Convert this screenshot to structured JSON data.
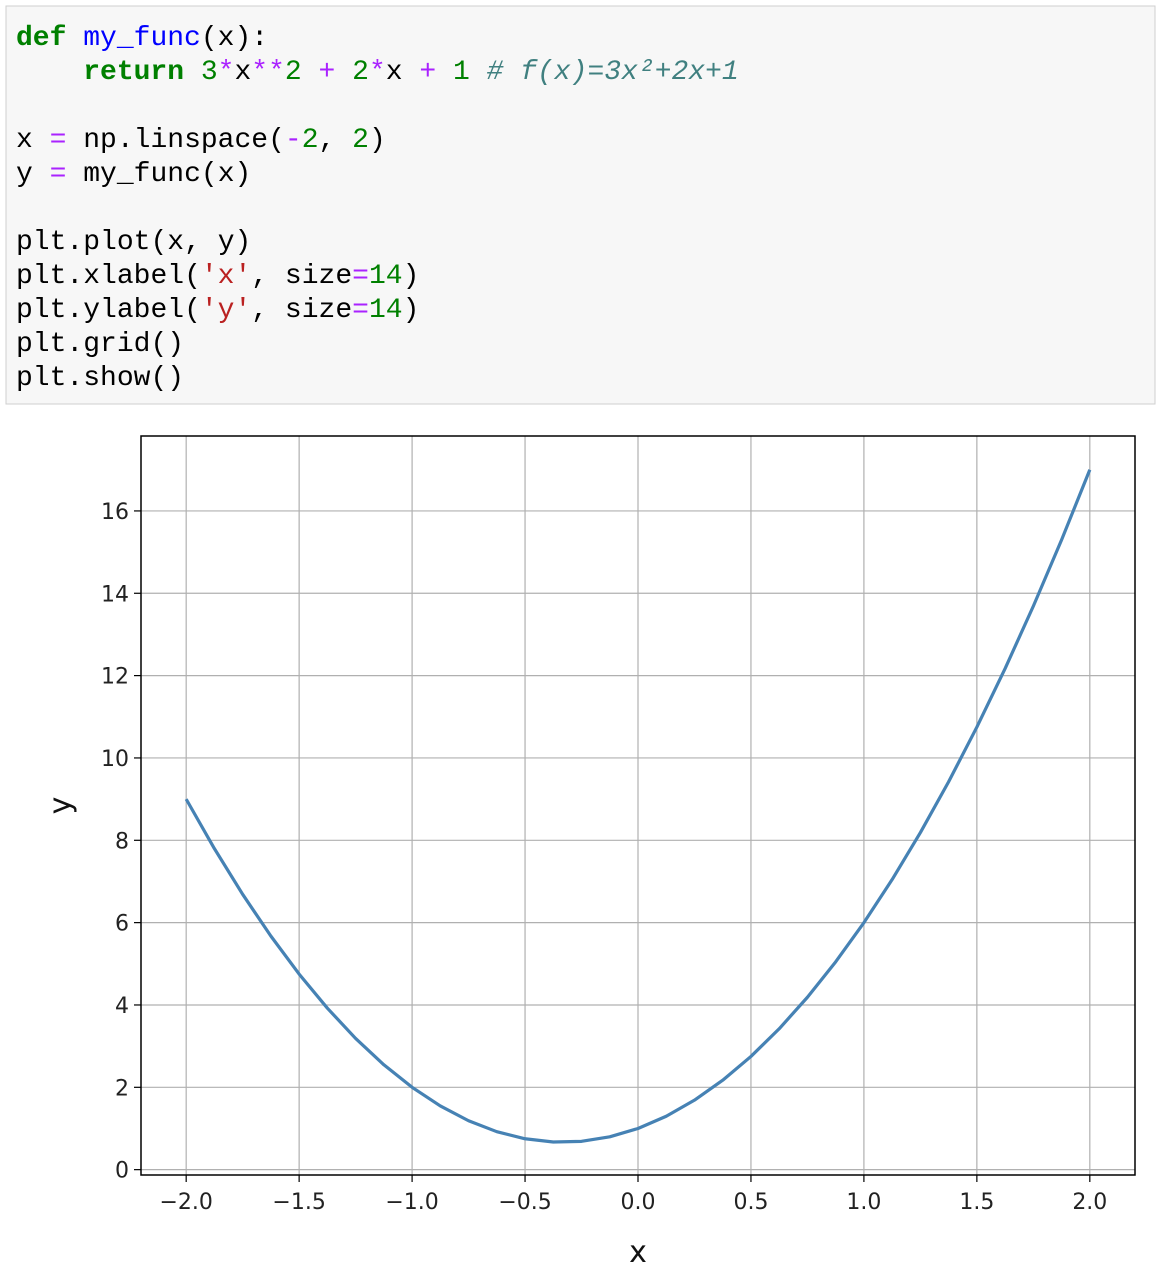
{
  "code": {
    "blocks": [
      [
        "def my_func(x):",
        "    return 3*x**2 + 2*x + 1 # f(x)=3x²+2x+1"
      ],
      [
        "x = np.linspace(-2, 2)",
        "y = my_func(x)"
      ],
      [
        "plt.plot(x, y)",
        "plt.xlabel('x', size=14)",
        "plt.ylabel('y', size=14)",
        "plt.grid()",
        "plt.show()"
      ]
    ]
  },
  "chart_data": {
    "type": "line",
    "x_label": "x",
    "y_label": "y",
    "x": [
      -2,
      -1.875,
      -1.75,
      -1.625,
      -1.5,
      -1.375,
      -1.25,
      -1.125,
      -1,
      -0.875,
      -0.75,
      -0.625,
      -0.5,
      -0.375,
      -0.25,
      -0.125,
      0,
      0.125,
      0.25,
      0.375,
      0.5,
      0.625,
      0.75,
      0.875,
      1,
      1.125,
      1.25,
      1.375,
      1.5,
      1.625,
      1.75,
      1.875,
      2
    ],
    "series": [
      {
        "color": "#4682b4",
        "values": [
          9,
          7.796875,
          6.6875,
          5.671875,
          4.75,
          3.921875,
          3.1875,
          2.546875,
          2,
          1.546875,
          1.1875,
          0.921875,
          0.75,
          0.671875,
          0.6875,
          0.796875,
          1,
          1.296875,
          1.6875,
          2.171875,
          2.75,
          3.421875,
          4.1875,
          5.046875,
          6,
          7.046875,
          8.1875,
          9.421875,
          10.75,
          12.171875,
          13.6875,
          15.296875,
          17
        ]
      }
    ],
    "xlim": [
      -2.2,
      2.2
    ],
    "ylim": [
      -0.13,
      17.82
    ],
    "xticks": [
      {
        "value": -2,
        "label": "−2.0"
      },
      {
        "value": -1.5,
        "label": "−1.5"
      },
      {
        "value": -1,
        "label": "−1.0"
      },
      {
        "value": -0.5,
        "label": "−0.5"
      },
      {
        "value": 0,
        "label": "0.0"
      },
      {
        "value": 0.5,
        "label": "0.5"
      },
      {
        "value": 1,
        "label": "1.0"
      },
      {
        "value": 1.5,
        "label": "1.5"
      },
      {
        "value": 2,
        "label": "2.0"
      }
    ],
    "yticks": [
      0,
      2,
      4,
      6,
      8,
      10,
      12,
      14,
      16
    ],
    "grid": true
  }
}
